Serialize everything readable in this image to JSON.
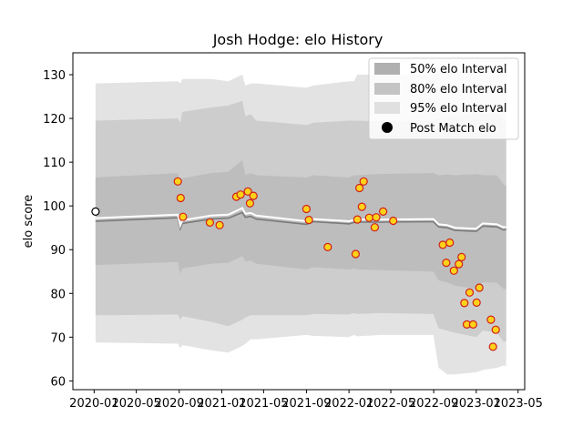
{
  "chart_data": {
    "type": "line",
    "title": "Josh Hodge: elo History",
    "xlabel": "",
    "ylabel": "elo score",
    "xlim": [
      "2019-11-01",
      "2023-05-20"
    ],
    "ylim": [
      58,
      135
    ],
    "grid": false,
    "legend_position": "top-right",
    "x_ticks": [
      "2020-01",
      "2020-05",
      "2020-09",
      "2021-01",
      "2021-05",
      "2021-09",
      "2022-01",
      "2022-05",
      "2022-09",
      "2023-01",
      "2023-05"
    ],
    "y_ticks": [
      60,
      70,
      80,
      90,
      100,
      110,
      120,
      130
    ],
    "legend": [
      {
        "label": "50% elo Interval",
        "color": "#b0b0b0"
      },
      {
        "label": "80% elo Interval",
        "color": "#c4c4c4"
      },
      {
        "label": "95% elo Interval",
        "color": "#e0e0e0"
      },
      {
        "label": "Post Match elo",
        "color": "#000000"
      }
    ],
    "band_x": [
      "2020-01-05",
      "2020-08-28",
      "2020-09-04",
      "2020-09-10",
      "2020-12-01",
      "2021-01-20",
      "2021-03-01",
      "2021-03-10",
      "2021-03-25",
      "2021-04-10",
      "2021-09-01",
      "2021-09-20",
      "2022-01-01",
      "2022-01-15",
      "2022-01-25",
      "2022-04-01",
      "2022-08-31",
      "2022-09-15",
      "2022-10-10",
      "2022-11-01",
      "2023-01-01",
      "2023-01-20",
      "2023-03-01",
      "2023-03-20",
      "2023-03-28"
    ],
    "mean": [
      96.5,
      97.3,
      94.8,
      96.0,
      97.0,
      97.2,
      98.5,
      97.4,
      97.6,
      97.0,
      95.8,
      96.4,
      95.9,
      96.2,
      96.3,
      96.3,
      96.4,
      95.2,
      95.0,
      94.4,
      94.2,
      95.4,
      95.2,
      94.5,
      94.6
    ],
    "median": [
      97.2,
      98.0,
      95.5,
      96.7,
      97.8,
      98.0,
      99.5,
      98.2,
      98.4,
      97.8,
      96.5,
      97.0,
      96.5,
      96.8,
      96.9,
      96.9,
      97.0,
      95.8,
      95.6,
      95.0,
      94.8,
      96.0,
      95.8,
      95.1,
      95.2
    ],
    "q25": [
      86.5,
      87.2,
      84.5,
      85.7,
      86.8,
      87.0,
      88.5,
      87.3,
      87.5,
      86.8,
      85.5,
      86.0,
      85.5,
      85.7,
      85.5,
      85.3,
      85.0,
      83.0,
      82.5,
      81.8,
      81.0,
      82.5,
      82.5,
      81.0,
      81.0
    ],
    "q75": [
      106.5,
      107.5,
      105.0,
      106.3,
      107.5,
      107.8,
      110.5,
      107.0,
      107.5,
      107.0,
      106.5,
      107.0,
      106.5,
      107.0,
      107.0,
      107.3,
      107.5,
      107.0,
      107.2,
      107.0,
      107.3,
      107.0,
      107.0,
      105.0,
      104.5
    ],
    "q10": [
      75.0,
      75.2,
      74.0,
      74.8,
      73.5,
      72.5,
      74.0,
      74.5,
      75.0,
      75.0,
      75.0,
      75.3,
      75.2,
      75.5,
      75.3,
      75.5,
      75.3,
      72.0,
      71.5,
      71.0,
      70.0,
      71.5,
      71.0,
      69.0,
      69.0
    ],
    "q90": [
      119.5,
      120.0,
      119.0,
      121.5,
      122.5,
      123.0,
      124.0,
      120.5,
      121.0,
      119.5,
      118.5,
      119.0,
      119.5,
      119.5,
      119.5,
      119.3,
      119.5,
      120.0,
      120.5,
      120.5,
      121.0,
      121.0,
      121.0,
      120.0,
      119.5
    ],
    "q025": [
      68.8,
      68.5,
      67.5,
      68.2,
      67.0,
      66.5,
      68.0,
      68.5,
      69.5,
      69.5,
      70.5,
      70.3,
      70.0,
      70.5,
      70.2,
      70.5,
      70.5,
      63.0,
      61.5,
      61.5,
      62.0,
      62.5,
      63.0,
      63.5,
      63.5
    ],
    "q975": [
      128.0,
      128.5,
      128.0,
      129.0,
      129.0,
      128.5,
      130.0,
      127.5,
      128.0,
      128.0,
      127.0,
      127.5,
      128.5,
      128.5,
      130.0,
      130.0,
      130.0,
      130.5,
      130.5,
      130.5,
      131.0,
      131.0,
      131.0,
      130.5,
      130.0
    ],
    "points": [
      {
        "x": "2020-01-05",
        "y": 98.7,
        "style": "initial"
      },
      {
        "x": "2020-08-28",
        "y": 105.6
      },
      {
        "x": "2020-09-05",
        "y": 101.8
      },
      {
        "x": "2020-09-12",
        "y": 97.5
      },
      {
        "x": "2020-11-28",
        "y": 96.2
      },
      {
        "x": "2020-12-26",
        "y": 95.6
      },
      {
        "x": "2021-02-12",
        "y": 102.1
      },
      {
        "x": "2021-02-24",
        "y": 102.6
      },
      {
        "x": "2021-03-17",
        "y": 103.3
      },
      {
        "x": "2021-03-23",
        "y": 100.6
      },
      {
        "x": "2021-04-02",
        "y": 102.3
      },
      {
        "x": "2021-09-01",
        "y": 99.3
      },
      {
        "x": "2021-09-08",
        "y": 96.8
      },
      {
        "x": "2021-11-01",
        "y": 90.6
      },
      {
        "x": "2022-01-20",
        "y": 89.0
      },
      {
        "x": "2022-01-25",
        "y": 96.9
      },
      {
        "x": "2022-01-31",
        "y": 104.1
      },
      {
        "x": "2022-02-07",
        "y": 99.8
      },
      {
        "x": "2022-02-12",
        "y": 105.6
      },
      {
        "x": "2022-02-28",
        "y": 97.3
      },
      {
        "x": "2022-03-16",
        "y": 95.1
      },
      {
        "x": "2022-03-20",
        "y": 97.4
      },
      {
        "x": "2022-04-09",
        "y": 98.7
      },
      {
        "x": "2022-05-08",
        "y": 96.6
      },
      {
        "x": "2022-09-27",
        "y": 91.1
      },
      {
        "x": "2022-10-07",
        "y": 87.0
      },
      {
        "x": "2022-10-17",
        "y": 91.6
      },
      {
        "x": "2022-10-29",
        "y": 85.2
      },
      {
        "x": "2022-11-12",
        "y": 86.7
      },
      {
        "x": "2022-11-20",
        "y": 88.3
      },
      {
        "x": "2022-11-28",
        "y": 77.8
      },
      {
        "x": "2022-12-05",
        "y": 72.9
      },
      {
        "x": "2022-12-13",
        "y": 80.2
      },
      {
        "x": "2022-12-23",
        "y": 72.9
      },
      {
        "x": "2023-01-02",
        "y": 77.9
      },
      {
        "x": "2023-01-10",
        "y": 81.3
      },
      {
        "x": "2023-02-12",
        "y": 74.0
      },
      {
        "x": "2023-02-18",
        "y": 67.8
      },
      {
        "x": "2023-02-26",
        "y": 71.7
      }
    ]
  }
}
